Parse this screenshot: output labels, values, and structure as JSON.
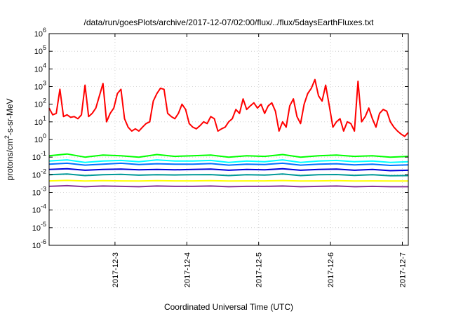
{
  "chart_data": {
    "type": "line",
    "title": "/data/run/goesPlots/archive/2017-12-07/02:00/flux/../flux/5daysEarthFluxes.txt",
    "xlabel": "Coordinated Universal Time (UTC)",
    "ylabel_prefix": "protons/cm",
    "ylabel_sup": "2",
    "ylabel_suffix": "-s-sr-MeV",
    "yscale": "log",
    "ylim": [
      1e-06,
      1000000.0
    ],
    "xlim": [
      "2017-12-02T02:00",
      "2017-12-07T02:00"
    ],
    "grid": true,
    "legend": "none",
    "y_ticks": [
      {
        "base": "10",
        "exp": "-6"
      },
      {
        "base": "10",
        "exp": "-5"
      },
      {
        "base": "10",
        "exp": "-4"
      },
      {
        "base": "10",
        "exp": "-3"
      },
      {
        "base": "10",
        "exp": "-2"
      },
      {
        "base": "10",
        "exp": "-1"
      },
      {
        "base": "10",
        "exp": "0"
      },
      {
        "base": "10",
        "exp": "1"
      },
      {
        "base": "10",
        "exp": "2"
      },
      {
        "base": "10",
        "exp": "3"
      },
      {
        "base": "10",
        "exp": "4"
      },
      {
        "base": "10",
        "exp": "5"
      },
      {
        "base": "10",
        "exp": "6"
      }
    ],
    "x_ticks": [
      "2017-12-3",
      "2017-12-4",
      "2017-12-5",
      "2017-12-6",
      "2017-12-7"
    ],
    "x_tick_days": [
      0.917,
      1.917,
      2.917,
      3.917,
      4.917
    ],
    "series": [
      {
        "color": "#ff0000",
        "x": [
          0,
          0.05,
          0.1,
          0.15,
          0.2,
          0.25,
          0.3,
          0.35,
          0.4,
          0.45,
          0.5,
          0.55,
          0.6,
          0.65,
          0.7,
          0.75,
          0.8,
          0.85,
          0.9,
          0.95,
          1.0,
          1.05,
          1.1,
          1.15,
          1.2,
          1.25,
          1.3,
          1.35,
          1.4,
          1.45,
          1.5,
          1.55,
          1.6,
          1.65,
          1.7,
          1.75,
          1.8,
          1.85,
          1.9,
          1.95,
          2.0,
          2.05,
          2.1,
          2.15,
          2.2,
          2.25,
          2.3,
          2.35,
          2.4,
          2.45,
          2.5,
          2.55,
          2.6,
          2.65,
          2.7,
          2.75,
          2.8,
          2.85,
          2.9,
          2.95,
          3.0,
          3.05,
          3.1,
          3.15,
          3.2,
          3.25,
          3.3,
          3.35,
          3.4,
          3.45,
          3.5,
          3.55,
          3.6,
          3.65,
          3.7,
          3.75,
          3.8,
          3.85,
          3.9,
          3.95,
          4.0,
          4.05,
          4.1,
          4.15,
          4.2,
          4.25,
          4.3,
          4.35,
          4.4,
          4.45,
          4.5,
          4.55,
          4.6,
          4.65,
          4.7,
          4.75,
          4.8,
          4.85,
          4.9,
          4.95,
          5.0
        ],
        "values": [
          60,
          25,
          30,
          700,
          20,
          25,
          18,
          20,
          15,
          25,
          1200,
          20,
          30,
          60,
          300,
          1500,
          10,
          30,
          60,
          400,
          700,
          15,
          5,
          3,
          4,
          3,
          5,
          8,
          10,
          150,
          400,
          800,
          700,
          30,
          20,
          15,
          30,
          100,
          50,
          8,
          5,
          4,
          6,
          10,
          8,
          20,
          15,
          3,
          4,
          5,
          10,
          15,
          50,
          30,
          200,
          50,
          80,
          120,
          60,
          100,
          30,
          80,
          120,
          40,
          3,
          10,
          5,
          80,
          200,
          20,
          8,
          100,
          400,
          800,
          2500,
          300,
          150,
          1200,
          80,
          5,
          10,
          15,
          3,
          10,
          8,
          3,
          2000,
          10,
          20,
          60,
          15,
          5,
          30,
          50,
          40,
          10,
          5,
          3,
          2,
          1.5,
          2.5
        ]
      },
      {
        "color": "#00ff00",
        "x": [
          0,
          0.25,
          0.5,
          0.75,
          1.0,
          1.25,
          1.5,
          1.75,
          2.0,
          2.25,
          2.5,
          2.75,
          3.0,
          3.25,
          3.5,
          3.75,
          4.0,
          4.25,
          4.5,
          4.75,
          5.0
        ],
        "values": [
          0.12,
          0.15,
          0.1,
          0.13,
          0.12,
          0.1,
          0.14,
          0.11,
          0.12,
          0.13,
          0.1,
          0.12,
          0.11,
          0.14,
          0.1,
          0.12,
          0.13,
          0.11,
          0.12,
          0.1,
          0.11
        ]
      },
      {
        "color": "#00ffff",
        "x": [
          0,
          0.25,
          0.5,
          0.75,
          1.0,
          1.25,
          1.5,
          1.75,
          2.0,
          2.25,
          2.5,
          2.75,
          3.0,
          3.25,
          3.5,
          3.75,
          4.0,
          4.25,
          4.5,
          4.75,
          5.0
        ],
        "values": [
          0.06,
          0.07,
          0.05,
          0.06,
          0.065,
          0.055,
          0.07,
          0.06,
          0.06,
          0.065,
          0.05,
          0.06,
          0.055,
          0.07,
          0.05,
          0.06,
          0.065,
          0.055,
          0.06,
          0.05,
          0.055
        ]
      },
      {
        "color": "#0070ff",
        "x": [
          0,
          0.25,
          0.5,
          0.75,
          1.0,
          1.25,
          1.5,
          1.75,
          2.0,
          2.25,
          2.5,
          2.75,
          3.0,
          3.25,
          3.5,
          3.75,
          4.0,
          4.25,
          4.5,
          4.75,
          5.0
        ],
        "values": [
          0.04,
          0.045,
          0.035,
          0.04,
          0.045,
          0.038,
          0.042,
          0.04,
          0.04,
          0.043,
          0.035,
          0.04,
          0.038,
          0.045,
          0.035,
          0.04,
          0.042,
          0.036,
          0.04,
          0.034,
          0.036
        ]
      },
      {
        "color": "#0000dd",
        "x": [
          0,
          0.25,
          0.5,
          0.75,
          1.0,
          1.25,
          1.5,
          1.75,
          2.0,
          2.25,
          2.5,
          2.75,
          3.0,
          3.25,
          3.5,
          3.75,
          4.0,
          4.25,
          4.5,
          4.75,
          5.0
        ],
        "values": [
          0.02,
          0.022,
          0.018,
          0.02,
          0.021,
          0.019,
          0.02,
          0.019,
          0.02,
          0.021,
          0.018,
          0.02,
          0.019,
          0.022,
          0.018,
          0.02,
          0.021,
          0.018,
          0.02,
          0.017,
          0.018
        ]
      },
      {
        "color": "#009999",
        "x": [
          0,
          0.25,
          0.5,
          0.75,
          1.0,
          1.25,
          1.5,
          1.75,
          2.0,
          2.25,
          2.5,
          2.75,
          3.0,
          3.25,
          3.5,
          3.75,
          4.0,
          4.25,
          4.5,
          4.75,
          5.0
        ],
        "values": [
          0.01,
          0.011,
          0.009,
          0.01,
          0.0105,
          0.0095,
          0.01,
          0.0098,
          0.01,
          0.0102,
          0.009,
          0.01,
          0.0096,
          0.011,
          0.009,
          0.01,
          0.0103,
          0.0092,
          0.01,
          0.0088,
          0.009
        ]
      },
      {
        "color": "#ffff00",
        "x": [
          0,
          0.25,
          0.5,
          0.75,
          1.0,
          1.25,
          1.5,
          1.75,
          2.0,
          2.25,
          2.5,
          2.75,
          3.0,
          3.25,
          3.5,
          3.75,
          4.0,
          4.25,
          4.5,
          4.75,
          5.0
        ],
        "values": [
          0.0045,
          0.0048,
          0.0044,
          0.0046,
          0.0045,
          0.0044,
          0.0046,
          0.0045,
          0.0045,
          0.0046,
          0.0044,
          0.0045,
          0.0045,
          0.0047,
          0.0044,
          0.0045,
          0.0046,
          0.0044,
          0.0045,
          0.0044,
          0.0044
        ]
      },
      {
        "color": "#883399",
        "x": [
          0,
          0.25,
          0.5,
          0.75,
          1.0,
          1.25,
          1.5,
          1.75,
          2.0,
          2.25,
          2.5,
          2.75,
          3.0,
          3.25,
          3.5,
          3.75,
          4.0,
          4.25,
          4.5,
          4.75,
          5.0
        ],
        "values": [
          0.0022,
          0.0024,
          0.0021,
          0.0023,
          0.0022,
          0.0021,
          0.0023,
          0.0022,
          0.0022,
          0.0023,
          0.0021,
          0.0022,
          0.0022,
          0.0023,
          0.0021,
          0.0022,
          0.0023,
          0.0021,
          0.0022,
          0.0021,
          0.0021
        ]
      }
    ]
  }
}
